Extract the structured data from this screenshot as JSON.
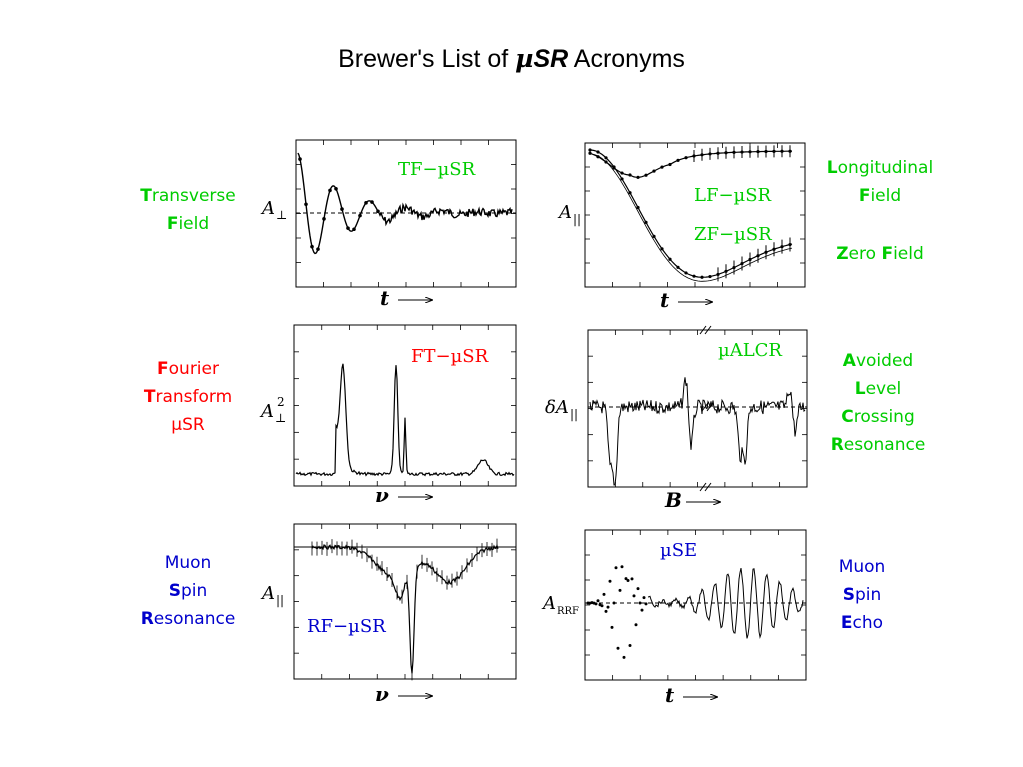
{
  "title": {
    "prefix": "Brewer's List of ",
    "mu": "µ",
    "sr": "SR",
    "suffix": " Acronyms"
  },
  "colors": {
    "green": "#00cc00",
    "red": "#ff0000",
    "blue": "#0000cc"
  },
  "labels": {
    "tf": [
      {
        "first": "T",
        "rest": "ransverse"
      },
      {
        "first": "F",
        "rest": "ield"
      }
    ],
    "ft": [
      {
        "first": "F",
        "rest": "ourier"
      },
      {
        "first": "T",
        "rest": "ransform"
      },
      {
        "first": "µ",
        "rest": "SR"
      }
    ],
    "rf": [
      {
        "first": "Muon",
        "rest": ""
      },
      {
        "first": "S",
        "rest": "pin"
      },
      {
        "first": "R",
        "rest": "esonance"
      }
    ],
    "lf": [
      {
        "first": "L",
        "rest": "ongitudinal"
      },
      {
        "first": "F",
        "rest": "ield"
      }
    ],
    "zf": [
      {
        "first": "Z",
        "rest": "ero "
      },
      {
        "first": "F",
        "rest": "ield"
      }
    ],
    "alcr": [
      {
        "first": "A",
        "rest": "voided"
      },
      {
        "first": "L",
        "rest": "evel"
      },
      {
        "first": "C",
        "rest": "rossing"
      },
      {
        "first": "R",
        "rest": "esonance"
      }
    ],
    "mse": [
      {
        "first": "Muon",
        "rest": ""
      },
      {
        "first": "S",
        "rest": "pin"
      },
      {
        "first": "E",
        "rest": "cho"
      }
    ]
  },
  "plots": {
    "tf": {
      "title": "TF−µSR",
      "ylabel": "A",
      "ysub": "⊥",
      "xlabel": "t"
    },
    "ft": {
      "title": "FT−µSR",
      "ylabel": "A",
      "ysub": "⊥",
      "ysup": "2",
      "xlabel": "ν"
    },
    "rf": {
      "title": "RF−µSR",
      "ylabel": "A",
      "ysub": "||",
      "xlabel": "ν"
    },
    "lf": {
      "title_lf": "LF−µSR",
      "title_zf": "ZF−µSR",
      "ylabel": "A",
      "ysub": "||",
      "xlabel": "t"
    },
    "alcr": {
      "title": "µALCR",
      "ylabel": "δA",
      "ysub": "||",
      "xlabel": "B"
    },
    "mse": {
      "title": "µSE",
      "ylabel": "A",
      "ysub": "RRF",
      "xlabel": "t"
    }
  }
}
